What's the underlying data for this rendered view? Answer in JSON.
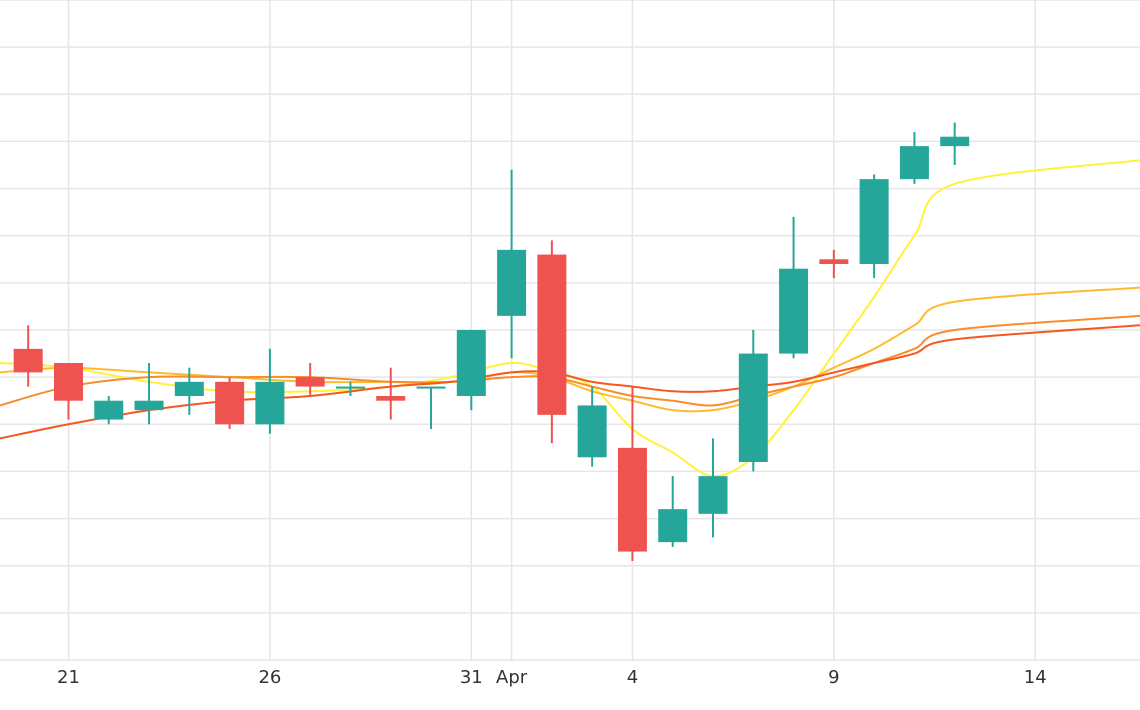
{
  "chart_data": {
    "type": "candlestick",
    "x_ticks": [
      {
        "day": 21,
        "label": "21"
      },
      {
        "day": 26,
        "label": "26"
      },
      {
        "day": 31,
        "label": "31"
      },
      {
        "day": 32,
        "label": "Apr"
      },
      {
        "day": 35,
        "label": "4"
      },
      {
        "day": 40,
        "label": "9"
      },
      {
        "day": 45,
        "label": "14"
      }
    ],
    "x_range": [
      19.3,
      47.6
    ],
    "y_range": [
      0,
      14
    ],
    "y_grid_values": [
      1,
      2,
      3,
      4,
      5,
      6,
      7,
      8,
      9,
      10,
      11,
      12,
      13,
      14
    ],
    "grid": true,
    "candles": [
      {
        "day": 20,
        "open": 6.6,
        "high": 7.1,
        "low": 5.8,
        "close": 6.1
      },
      {
        "day": 21,
        "open": 6.3,
        "high": 6.3,
        "low": 5.1,
        "close": 5.5
      },
      {
        "day": 22,
        "open": 5.1,
        "high": 5.6,
        "low": 5.0,
        "close": 5.5
      },
      {
        "day": 23,
        "open": 5.3,
        "high": 6.3,
        "low": 5.0,
        "close": 5.5
      },
      {
        "day": 24,
        "open": 5.6,
        "high": 6.2,
        "low": 5.2,
        "close": 5.9
      },
      {
        "day": 25,
        "open": 5.9,
        "high": 6.0,
        "low": 4.9,
        "close": 5.0
      },
      {
        "day": 26,
        "open": 5.0,
        "high": 6.6,
        "low": 4.8,
        "close": 5.9
      },
      {
        "day": 27,
        "open": 6.0,
        "high": 6.3,
        "low": 5.6,
        "close": 5.8
      },
      {
        "day": 28,
        "open": 5.8,
        "high": 5.9,
        "low": 5.6,
        "close": 5.8
      },
      {
        "day": 29,
        "open": 5.6,
        "high": 6.2,
        "low": 5.1,
        "close": 5.5
      },
      {
        "day": 30,
        "open": 5.8,
        "high": 5.8,
        "low": 4.9,
        "close": 5.8
      },
      {
        "day": 31,
        "open": 5.6,
        "high": 7.0,
        "low": 5.3,
        "close": 7.0
      },
      {
        "day": 32,
        "open": 7.3,
        "high": 10.4,
        "low": 6.4,
        "close": 8.7
      },
      {
        "day": 33,
        "open": 8.6,
        "high": 8.9,
        "low": 4.6,
        "close": 5.2
      },
      {
        "day": 34,
        "open": 4.3,
        "high": 5.8,
        "low": 4.1,
        "close": 5.4
      },
      {
        "day": 35,
        "open": 4.5,
        "high": 5.8,
        "low": 2.1,
        "close": 2.3
      },
      {
        "day": 36,
        "open": 2.5,
        "high": 3.9,
        "low": 2.4,
        "close": 3.2
      },
      {
        "day": 37,
        "open": 3.1,
        "high": 4.7,
        "low": 2.6,
        "close": 3.9
      },
      {
        "day": 38,
        "open": 4.2,
        "high": 7.0,
        "low": 4.0,
        "close": 6.5
      },
      {
        "day": 39,
        "open": 6.5,
        "high": 9.4,
        "low": 6.4,
        "close": 8.3
      },
      {
        "day": 40,
        "open": 8.5,
        "high": 8.7,
        "low": 8.1,
        "close": 8.4
      },
      {
        "day": 41,
        "open": 8.4,
        "high": 10.3,
        "low": 8.1,
        "close": 10.2
      },
      {
        "day": 42,
        "open": 10.2,
        "high": 11.2,
        "low": 10.1,
        "close": 10.9
      },
      {
        "day": 43,
        "open": 10.9,
        "high": 11.4,
        "low": 10.5,
        "close": 11.1
      }
    ],
    "moving_averages": [
      {
        "color": "#fff23a",
        "points": [
          [
            19.3,
            6.3
          ],
          [
            21,
            6.2
          ],
          [
            23,
            5.9
          ],
          [
            25,
            5.7
          ],
          [
            27,
            5.7
          ],
          [
            29,
            5.8
          ],
          [
            30.5,
            6.0
          ],
          [
            32,
            6.3
          ],
          [
            33,
            6.1
          ],
          [
            34,
            5.8
          ],
          [
            35,
            4.9
          ],
          [
            36,
            4.4
          ],
          [
            37,
            3.9
          ],
          [
            38,
            4.3
          ],
          [
            39,
            5.3
          ],
          [
            40,
            6.5
          ],
          [
            41,
            7.7
          ],
          [
            42,
            9.0
          ],
          [
            43,
            10.1
          ],
          [
            47.6,
            10.6
          ]
        ]
      },
      {
        "color": "#fdbc2e",
        "points": [
          [
            19.3,
            6.1
          ],
          [
            21,
            6.2
          ],
          [
            23,
            6.1
          ],
          [
            25,
            6.0
          ],
          [
            27,
            5.9
          ],
          [
            29,
            5.9
          ],
          [
            30.5,
            5.9
          ],
          [
            32,
            6.1
          ],
          [
            33,
            6.0
          ],
          [
            34,
            5.7
          ],
          [
            35,
            5.5
          ],
          [
            36,
            5.3
          ],
          [
            37,
            5.3
          ],
          [
            38,
            5.5
          ],
          [
            39,
            5.8
          ],
          [
            40,
            6.2
          ],
          [
            41,
            6.6
          ],
          [
            42,
            7.1
          ],
          [
            43,
            7.6
          ],
          [
            47.6,
            7.9
          ]
        ]
      },
      {
        "color": "#f88d2a",
        "points": [
          [
            19.3,
            5.4
          ],
          [
            21,
            5.8
          ],
          [
            23,
            6.0
          ],
          [
            25,
            6.0
          ],
          [
            27,
            6.0
          ],
          [
            29,
            5.9
          ],
          [
            30.5,
            5.9
          ],
          [
            32,
            6.0
          ],
          [
            33,
            6.0
          ],
          [
            34,
            5.8
          ],
          [
            35,
            5.6
          ],
          [
            36,
            5.5
          ],
          [
            37,
            5.4
          ],
          [
            38,
            5.6
          ],
          [
            39,
            5.8
          ],
          [
            40,
            6.0
          ],
          [
            41,
            6.3
          ],
          [
            42,
            6.6
          ],
          [
            43,
            7.0
          ],
          [
            47.6,
            7.3
          ]
        ]
      },
      {
        "color": "#f5581f",
        "points": [
          [
            19.3,
            4.7
          ],
          [
            21,
            5.0
          ],
          [
            23,
            5.3
          ],
          [
            25,
            5.5
          ],
          [
            27,
            5.6
          ],
          [
            29,
            5.8
          ],
          [
            30.5,
            5.9
          ],
          [
            32,
            6.1
          ],
          [
            33,
            6.1
          ],
          [
            34,
            5.9
          ],
          [
            35,
            5.8
          ],
          [
            36,
            5.7
          ],
          [
            37,
            5.7
          ],
          [
            38,
            5.8
          ],
          [
            39,
            5.9
          ],
          [
            40,
            6.1
          ],
          [
            41,
            6.3
          ],
          [
            42,
            6.5
          ],
          [
            43,
            6.8
          ],
          [
            47.6,
            7.1
          ]
        ]
      }
    ],
    "colors": {
      "up": "#26a69a",
      "down": "#ef5350",
      "grid": "#e6e6e6",
      "text": "#333333"
    }
  }
}
